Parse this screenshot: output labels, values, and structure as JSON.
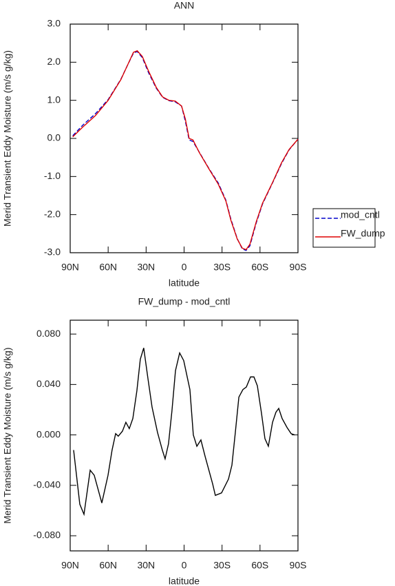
{
  "chart_data": [
    {
      "type": "line",
      "title": "ANN",
      "xlabel": "latitude",
      "ylabel": "Merid Transient Eddy Moisture (m/s g/kg)",
      "x": [
        88,
        80,
        70,
        60,
        50,
        45,
        40,
        37,
        33,
        28,
        22,
        17,
        12,
        7,
        2,
        -1,
        -4,
        -7,
        -12,
        -20,
        -27,
        -33,
        -37,
        -42,
        -46,
        -49,
        -52,
        -57,
        -62,
        -70,
        -77,
        -83,
        -90
      ],
      "series": [
        {
          "name": "mod_cntl",
          "color": "#0000cc",
          "dash": true,
          "values": [
            0.07,
            0.35,
            0.65,
            1.02,
            1.55,
            1.9,
            2.24,
            2.28,
            2.12,
            1.72,
            1.32,
            1.08,
            0.99,
            0.96,
            0.85,
            0.45,
            -0.04,
            -0.08,
            -0.36,
            -0.81,
            -1.17,
            -1.62,
            -2.12,
            -2.63,
            -2.9,
            -2.94,
            -2.82,
            -2.22,
            -1.72,
            -1.16,
            -0.66,
            -0.3,
            -0.02
          ]
        },
        {
          "name": "FW_dump",
          "color": "#dd0000",
          "dash": false,
          "values": [
            0.04,
            0.3,
            0.6,
            1.0,
            1.54,
            1.9,
            2.26,
            2.3,
            2.15,
            1.76,
            1.34,
            1.09,
            1.0,
            0.98,
            0.85,
            0.51,
            0.0,
            -0.04,
            -0.37,
            -0.82,
            -1.2,
            -1.64,
            -2.15,
            -2.64,
            -2.88,
            -2.92,
            -2.78,
            -2.19,
            -1.7,
            -1.15,
            -0.64,
            -0.29,
            -0.02
          ]
        }
      ],
      "xlim": [
        90,
        -90
      ],
      "xticks": [
        {
          "value": 90,
          "label": "90N"
        },
        {
          "value": 60,
          "label": "60N"
        },
        {
          "value": 30,
          "label": "30N"
        },
        0,
        {
          "value": -30,
          "label": "30S"
        },
        {
          "value": -60,
          "label": "60S"
        },
        {
          "value": -90,
          "label": "90S"
        }
      ],
      "ylim": [
        -3,
        3
      ],
      "yticks": [
        {
          "value": 3,
          "label": "3.0"
        },
        {
          "value": 2,
          "label": "2.0"
        },
        {
          "value": 1,
          "label": "1.0"
        },
        {
          "value": 0,
          "label": "0.0"
        },
        {
          "value": -1,
          "label": "-1.0"
        },
        {
          "value": -2,
          "label": "-2.0"
        },
        {
          "value": -3,
          "label": "-3.0"
        }
      ],
      "legend": "right"
    },
    {
      "type": "line",
      "title": "FW_dump - mod_cntl",
      "xlabel": "latitude",
      "ylabel": "Merid Transient Eddy Moisture (m/s g/kg)",
      "x": [
        87.3,
        82.4,
        79.1,
        74.2,
        71.0,
        65.0,
        60.1,
        56.9,
        54.1,
        52.0,
        48.7,
        46.0,
        43.3,
        40.5,
        37.3,
        34.6,
        31.9,
        28.6,
        25.3,
        21.0,
        17.2,
        15.0,
        12.3,
        9.6,
        6.8,
        3.5,
        0.3,
        -4.6,
        -7.3,
        -10.1,
        -13.3,
        -16.6,
        -22.6,
        -24.7,
        -29.6,
        -35.1,
        -37.8,
        -40.5,
        -43.3,
        -46.5,
        -49.2,
        -52.5,
        -55.2,
        -57.9,
        -61.2,
        -63.9,
        -66.6,
        -69.9,
        -72.6,
        -74.8,
        -77.5,
        -81.3,
        -84.6,
        -87.3
      ],
      "series": [
        {
          "name": "FW_dump - mod_cntl",
          "color": "#000000",
          "dash": false,
          "values": [
            -0.012,
            -0.055,
            -0.063,
            -0.028,
            -0.032,
            -0.054,
            -0.032,
            -0.012,
            0.001,
            -0.001,
            0.003,
            0.01,
            0.005,
            0.013,
            0.035,
            0.06,
            0.069,
            0.045,
            0.022,
            0.002,
            -0.012,
            -0.019,
            -0.007,
            0.019,
            0.051,
            0.065,
            0.059,
            0.036,
            0.0,
            -0.009,
            -0.004,
            -0.017,
            -0.039,
            -0.048,
            -0.046,
            -0.035,
            -0.024,
            0.002,
            0.03,
            0.036,
            0.038,
            0.046,
            0.046,
            0.039,
            0.017,
            -0.003,
            -0.009,
            0.01,
            0.018,
            0.021,
            0.013,
            0.006,
            0.001,
            0.0
          ]
        }
      ],
      "xlim": [
        90,
        -90
      ],
      "xticks": [
        {
          "value": 90,
          "label": "90N"
        },
        {
          "value": 60,
          "label": "60N"
        },
        {
          "value": 30,
          "label": "30N"
        },
        0,
        {
          "value": -30,
          "label": "30S"
        },
        {
          "value": -60,
          "label": "60S"
        },
        {
          "value": -90,
          "label": "90S"
        }
      ],
      "ylim": [
        -0.092,
        0.091
      ],
      "yticks": [
        {
          "value": 0.08,
          "label": "0.080"
        },
        {
          "value": 0.04,
          "label": "0.040"
        },
        {
          "value": 0,
          "label": "0.000"
        },
        {
          "value": -0.04,
          "label": "-0.040"
        },
        {
          "value": -0.08,
          "label": "-0.080"
        }
      ]
    }
  ]
}
